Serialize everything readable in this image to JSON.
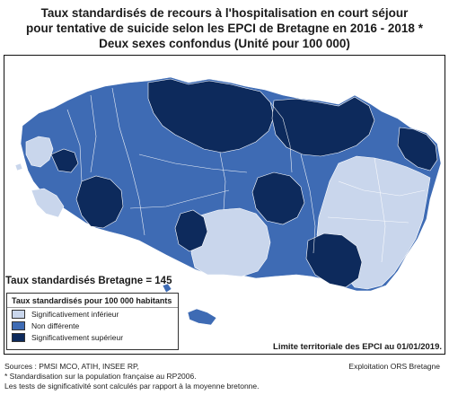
{
  "title": {
    "line1": "Taux standardisés de recours à l'hospitalisation en court séjour",
    "line2": "pour tentative de suicide selon les EPCI de Bretagne en 2016 - 2018 *",
    "line3": "Deux sexes confondus (Unité pour 100 000)"
  },
  "bretagne_rate": "Taux standardisés Bretagne = 145",
  "legend": {
    "title": "Taux standardisés pour 100 000 habitants",
    "items": [
      {
        "label": "Significativement inférieur",
        "color": "#c9d6ec"
      },
      {
        "label": "Non différente",
        "color": "#3e6bb4"
      },
      {
        "label": "Significativement supérieur",
        "color": "#0d2a5c"
      }
    ]
  },
  "limit_note": "Limite territoriale des EPCI au 01/01/2019.",
  "footer": {
    "sources": "Sources : PMSI MCO, ATIH, INSEE RP,",
    "standard": "* Standardisation sur la population française au RP2006.",
    "tests": "Les tests de significativité sont calculés par rapport à la moyenne bretonne.",
    "exploitation": "Exploitation ORS Bretagne"
  },
  "colors": {
    "inferior": "#c9d6ec",
    "not_different": "#3e6bb4",
    "superior": "#0d2a5c",
    "border": "#ffffff"
  }
}
